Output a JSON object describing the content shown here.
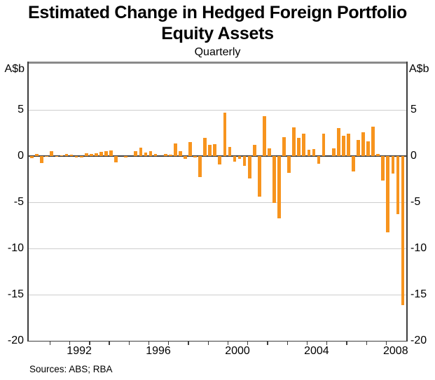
{
  "title": {
    "line1": "Estimated Change in Hedged Foreign Portfolio",
    "line2": "Equity Assets"
  },
  "subtitle": "Quarterly",
  "axis_unit_left": "A$b",
  "axis_unit_right": "A$b",
  "source_note": "Sources: ABS; RBA",
  "chart_data": {
    "type": "bar",
    "title": "Estimated Change in Hedged Foreign Portfolio Equity Assets",
    "subtitle": "Quarterly",
    "ylabel": "A$b",
    "ylim": [
      -20,
      10
    ],
    "ytick_labels": [
      "5",
      "0",
      "-5",
      "-10",
      "-15",
      "-20"
    ],
    "ytick_values": [
      5,
      0,
      -5,
      -10,
      -15,
      -20
    ],
    "gridline_values": [
      5,
      -5,
      -10,
      -15
    ],
    "grid": "horizontal only",
    "legend": "none",
    "bar_color": "#F7941E",
    "xtick_years": [
      1991,
      1992,
      1993,
      1994,
      1995,
      1996,
      1997,
      1998,
      1999,
      2000,
      2001,
      2002,
      2003,
      2004,
      2005,
      2006,
      2007,
      2008
    ],
    "xlabel_years": [
      "1992",
      "1996",
      "2000",
      "2004",
      "2008"
    ],
    "x_range_years": [
      1990.0,
      2009.1
    ],
    "x": [
      "1990 Q1",
      "1990 Q2",
      "1990 Q3",
      "1990 Q4",
      "1991 Q1",
      "1991 Q2",
      "1991 Q3",
      "1991 Q4",
      "1992 Q1",
      "1992 Q2",
      "1992 Q3",
      "1992 Q4",
      "1993 Q1",
      "1993 Q2",
      "1993 Q3",
      "1993 Q4",
      "1994 Q1",
      "1994 Q2",
      "1994 Q3",
      "1994 Q4",
      "1995 Q1",
      "1995 Q2",
      "1995 Q3",
      "1995 Q4",
      "1996 Q1",
      "1996 Q2",
      "1996 Q3",
      "1996 Q4",
      "1997 Q1",
      "1997 Q2",
      "1997 Q3",
      "1997 Q4",
      "1998 Q1",
      "1998 Q2",
      "1998 Q3",
      "1998 Q4",
      "1999 Q1",
      "1999 Q2",
      "1999 Q3",
      "1999 Q4",
      "2000 Q1",
      "2000 Q2",
      "2000 Q3",
      "2000 Q4",
      "2001 Q1",
      "2001 Q2",
      "2001 Q3",
      "2001 Q4",
      "2002 Q1",
      "2002 Q2",
      "2002 Q3",
      "2002 Q4",
      "2003 Q1",
      "2003 Q2",
      "2003 Q3",
      "2003 Q4",
      "2004 Q1",
      "2004 Q2",
      "2004 Q3",
      "2004 Q4",
      "2005 Q1",
      "2005 Q2",
      "2005 Q3",
      "2005 Q4",
      "2006 Q1",
      "2006 Q2",
      "2006 Q3",
      "2006 Q4",
      "2007 Q1",
      "2007 Q2",
      "2007 Q3",
      "2007 Q4",
      "2008 Q1",
      "2008 Q2",
      "2008 Q3",
      "2008 Q4"
    ],
    "series": [
      {
        "name": "Estimated change in hedged foreign portfolio equity assets (A$b)",
        "values": [
          -0.25,
          0.25,
          -0.8,
          -0.1,
          0.5,
          -0.1,
          0.05,
          0.2,
          0.15,
          -0.2,
          -0.15,
          0.3,
          0.25,
          0.3,
          0.45,
          0.55,
          0.6,
          -0.7,
          0,
          -0.15,
          0,
          0.5,
          0.9,
          0.35,
          0.5,
          0.25,
          0,
          0.25,
          0.15,
          1.35,
          0.55,
          -0.35,
          1.5,
          -0.15,
          -2.3,
          2.0,
          1.2,
          1.3,
          -0.9,
          4.7,
          0.95,
          -0.6,
          -0.35,
          -1.1,
          -2.45,
          1.2,
          -4.4,
          4.3,
          0.85,
          -5.1,
          -6.8,
          2.05,
          -1.85,
          3.1,
          2.0,
          2.45,
          0.7,
          0.75,
          -0.85,
          2.45,
          0,
          0.8,
          3.05,
          2.2,
          2.4,
          -1.7,
          1.75,
          2.55,
          1.55,
          3.15,
          0.25,
          -2.7,
          -8.3,
          -1.9,
          -6.3,
          -16.2
        ]
      }
    ],
    "source": "Sources: ABS; RBA"
  }
}
